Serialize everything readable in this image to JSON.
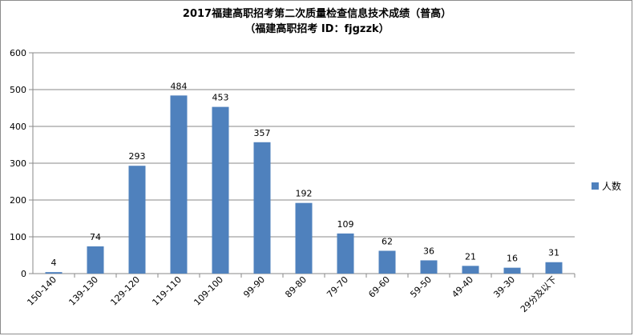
{
  "chart_data": {
    "type": "bar",
    "title": "2017福建高职招考第二次质量检查信息技术成绩（普高）",
    "subtitle": "（福建高职招考 ID：fjgzzk）",
    "categories": [
      "150-140",
      "139-130",
      "129-120",
      "119-110",
      "109-100",
      "99-90",
      "89-80",
      "79-70",
      "69-60",
      "59-50",
      "49-40",
      "39-30",
      "29分及以下"
    ],
    "series": [
      {
        "name": "人数",
        "values": [
          4,
          74,
          293,
          484,
          453,
          357,
          192,
          109,
          62,
          36,
          21,
          16,
          31
        ]
      }
    ],
    "ylim": [
      0,
      600
    ],
    "yticks": [
      0,
      100,
      200,
      300,
      400,
      500,
      600
    ],
    "grid": true,
    "legend_position": "right",
    "bar_color": "#4f81bd",
    "gridline_color": "#8a8a8a"
  }
}
